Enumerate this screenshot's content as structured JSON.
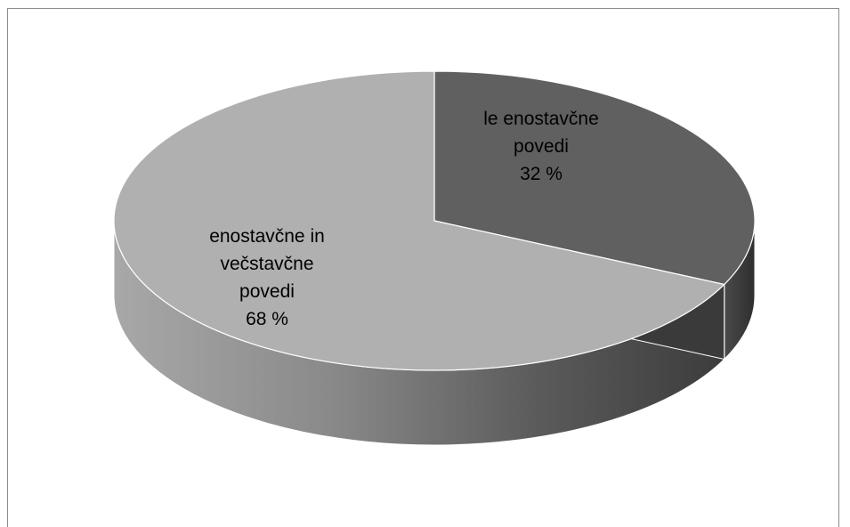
{
  "chart_data": {
    "type": "pie",
    "title": "",
    "slices": [
      {
        "label_lines": [
          "le enostavčne",
          "povedi",
          "32 %"
        ],
        "value": 32,
        "color": "#606060"
      },
      {
        "label_lines": [
          "enostavčne in",
          "večstavčne",
          "povedi",
          "68 %"
        ],
        "value": 68,
        "color": "#b0b0b0"
      }
    ],
    "start_angle_deg": 0,
    "direction": "clockwise",
    "style": "3d",
    "legend": "none"
  }
}
